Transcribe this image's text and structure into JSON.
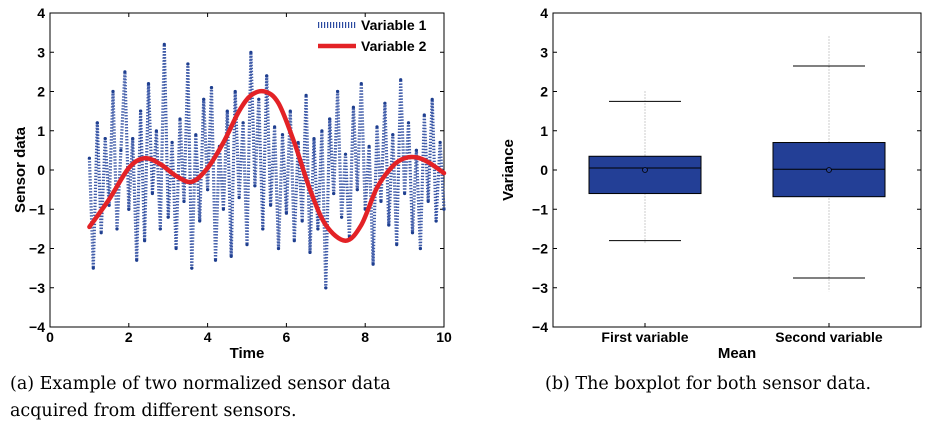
{
  "chart_data": [
    {
      "type": "line",
      "xlabel": "Time",
      "ylabel": "Sensor data",
      "xlim": [
        0,
        10
      ],
      "ylim": [
        -4,
        4
      ],
      "xticks": [
        0,
        2,
        4,
        6,
        8,
        10
      ],
      "yticks": [
        -4,
        -3,
        -2,
        -1,
        0,
        1,
        2,
        3,
        4
      ],
      "legend_position": "top-right",
      "series": [
        {
          "name": "Variable 1",
          "style": "dotted",
          "color": "#2b4aa0",
          "x": [
            1.0,
            1.1,
            1.2,
            1.3,
            1.4,
            1.5,
            1.6,
            1.7,
            1.8,
            1.9,
            2.0,
            2.1,
            2.2,
            2.3,
            2.4,
            2.5,
            2.6,
            2.7,
            2.8,
            2.9,
            3.0,
            3.1,
            3.2,
            3.3,
            3.4,
            3.5,
            3.6,
            3.7,
            3.8,
            3.9,
            4.0,
            4.1,
            4.2,
            4.3,
            4.4,
            4.5,
            4.6,
            4.7,
            4.8,
            4.9,
            5.0,
            5.1,
            5.2,
            5.3,
            5.4,
            5.5,
            5.6,
            5.7,
            5.8,
            5.9,
            6.0,
            6.1,
            6.2,
            6.3,
            6.4,
            6.5,
            6.6,
            6.7,
            6.8,
            6.9,
            7.0,
            7.1,
            7.2,
            7.3,
            7.4,
            7.5,
            7.6,
            7.7,
            7.8,
            7.9,
            8.0,
            8.1,
            8.2,
            8.3,
            8.4,
            8.5,
            8.6,
            8.7,
            8.8,
            8.9,
            9.0,
            9.1,
            9.2,
            9.3,
            9.4,
            9.5,
            9.6,
            9.7,
            9.8,
            9.9,
            10.0
          ],
          "y": [
            0.3,
            -2.5,
            1.2,
            -1.6,
            0.8,
            -0.9,
            2.0,
            -1.5,
            0.5,
            2.5,
            -1.0,
            0.8,
            -2.3,
            1.5,
            -1.8,
            2.2,
            -0.6,
            1.0,
            -1.5,
            3.2,
            -1.2,
            0.7,
            -2.0,
            1.3,
            -0.8,
            2.7,
            -2.5,
            0.9,
            -1.3,
            1.8,
            -0.5,
            2.1,
            -2.3,
            0.6,
            -1.0,
            1.5,
            -2.2,
            2.0,
            -0.7,
            1.2,
            -1.9,
            3.0,
            -0.4,
            1.8,
            -1.5,
            2.4,
            -0.9,
            1.1,
            -2.0,
            0.9,
            -1.1,
            1.5,
            -1.8,
            0.7,
            -1.3,
            1.9,
            -2.1,
            0.8,
            -1.5,
            1.0,
            -3.0,
            1.3,
            -0.6,
            2.0,
            -1.2,
            0.4,
            -1.7,
            1.6,
            -0.5,
            2.2,
            -1.0,
            0.6,
            -2.4,
            1.1,
            -0.8,
            1.7,
            -1.4,
            0.9,
            -1.9,
            2.3,
            -0.6,
            1.2,
            -1.6,
            0.5,
            -2.0,
            1.4,
            -0.8,
            1.8,
            -1.3,
            0.7,
            -1.0
          ]
        },
        {
          "name": "Variable 2",
          "style": "solid",
          "color": "#e32226",
          "x": [
            1.0,
            1.5,
            2.0,
            2.4,
            2.8,
            3.2,
            3.6,
            4.0,
            4.4,
            4.8,
            5.1,
            5.45,
            5.8,
            6.2,
            6.6,
            7.0,
            7.5,
            7.9,
            8.3,
            8.7,
            9.0,
            9.3,
            9.6,
            10.0
          ],
          "y": [
            -1.45,
            -0.75,
            0.05,
            0.3,
            0.15,
            -0.15,
            -0.3,
            0.05,
            0.7,
            1.5,
            1.9,
            2.0,
            1.7,
            0.7,
            -0.5,
            -1.4,
            -1.8,
            -1.4,
            -0.45,
            0.1,
            0.3,
            0.32,
            0.2,
            -0.08
          ]
        }
      ]
    },
    {
      "type": "boxplot",
      "xlabel": "Mean",
      "ylabel": "Variance",
      "ylim": [
        -4,
        4
      ],
      "yticks": [
        -4,
        -3,
        -2,
        -1,
        0,
        1,
        2,
        3,
        4
      ],
      "categories": [
        "First variable",
        "Second variable"
      ],
      "color": "#233f96",
      "boxes": [
        {
          "q1": -0.6,
          "median": 0.05,
          "q3": 0.35,
          "whisker_low": -1.8,
          "whisker_high": 1.75,
          "mean": 0.0,
          "range_low": -1.85,
          "range_high": 2.0
        },
        {
          "q1": -0.68,
          "median": 0.02,
          "q3": 0.7,
          "whisker_low": -2.75,
          "whisker_high": 2.65,
          "mean": 0.0,
          "range_low": -3.1,
          "range_high": 3.4
        }
      ]
    }
  ],
  "captions": {
    "a_line1": "(a) Example of two normalized sensor data",
    "a_line2": "acquired from different sensors.",
    "b_line1": "(b) The boxplot for both sensor data."
  }
}
